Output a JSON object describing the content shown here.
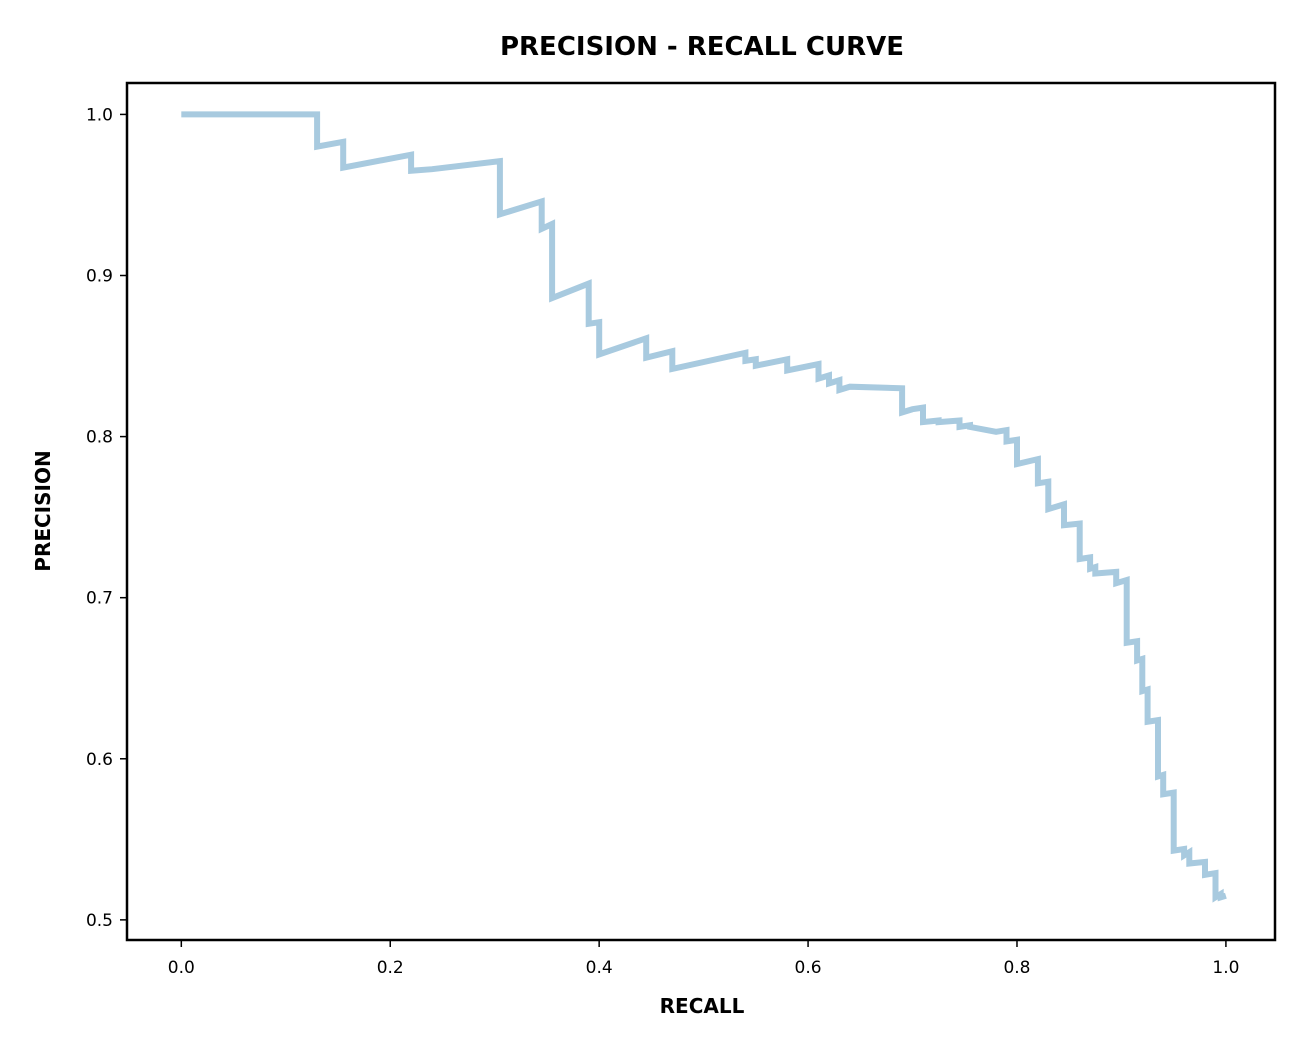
{
  "chart_data": {
    "type": "line",
    "title": "PRECISION - RECALL CURVE",
    "xlabel": "RECALL",
    "ylabel": "PRECISION",
    "xlim": [
      -0.052,
      1.047
    ],
    "ylim": [
      0.4875,
      1.0195
    ],
    "xticks": [
      0.0,
      0.2,
      0.4,
      0.6,
      0.8,
      1.0
    ],
    "xtick_labels": [
      "0.0",
      "0.2",
      "0.4",
      "0.6",
      "0.8",
      "1.0"
    ],
    "yticks": [
      0.5,
      0.6,
      0.7,
      0.8,
      0.9,
      1.0
    ],
    "ytick_labels": [
      "0.5",
      "0.6",
      "0.7",
      "0.8",
      "0.9",
      "1.0"
    ],
    "grid": false,
    "line_color": "#a8cadf",
    "series": [
      {
        "step": "post",
        "x": [
          0.0,
          0.13,
          0.13,
          0.155,
          0.155,
          0.22,
          0.22,
          0.24,
          0.24,
          0.305,
          0.305,
          0.345,
          0.345,
          0.355,
          0.355,
          0.39,
          0.39,
          0.4,
          0.4,
          0.445,
          0.445,
          0.47,
          0.47,
          0.54,
          0.54,
          0.55,
          0.55,
          0.58,
          0.58,
          0.61,
          0.61,
          0.62,
          0.62,
          0.63,
          0.63,
          0.64,
          0.64,
          0.69,
          0.69,
          0.7,
          0.7,
          0.71,
          0.71,
          0.725,
          0.725,
          0.745,
          0.745,
          0.755,
          0.755,
          0.78,
          0.78,
          0.79,
          0.79,
          0.8,
          0.8,
          0.82,
          0.82,
          0.83,
          0.83,
          0.845,
          0.845,
          0.86,
          0.86,
          0.87,
          0.87,
          0.875,
          0.875,
          0.895,
          0.895,
          0.905,
          0.905,
          0.915,
          0.915,
          0.92,
          0.92,
          0.925,
          0.925,
          0.935,
          0.935,
          0.94,
          0.94,
          0.95,
          0.95,
          0.96,
          0.96,
          0.965,
          0.965,
          0.98,
          0.98,
          0.99,
          0.99,
          0.995,
          0.995,
          1.0
        ],
        "y": [
          1.0,
          1.0,
          0.98,
          0.983,
          0.967,
          0.975,
          0.965,
          0.966,
          0.966,
          0.971,
          0.938,
          0.946,
          0.929,
          0.932,
          0.886,
          0.895,
          0.87,
          0.871,
          0.851,
          0.861,
          0.849,
          0.853,
          0.842,
          0.852,
          0.847,
          0.848,
          0.844,
          0.848,
          0.841,
          0.845,
          0.836,
          0.838,
          0.833,
          0.835,
          0.829,
          0.831,
          0.831,
          0.83,
          0.815,
          0.817,
          0.817,
          0.818,
          0.809,
          0.81,
          0.809,
          0.81,
          0.806,
          0.807,
          0.806,
          0.803,
          0.803,
          0.804,
          0.797,
          0.798,
          0.783,
          0.786,
          0.771,
          0.772,
          0.755,
          0.758,
          0.745,
          0.746,
          0.724,
          0.725,
          0.718,
          0.719,
          0.715,
          0.716,
          0.709,
          0.711,
          0.672,
          0.673,
          0.661,
          0.662,
          0.642,
          0.643,
          0.623,
          0.624,
          0.589,
          0.59,
          0.578,
          0.579,
          0.543,
          0.544,
          0.54,
          0.542,
          0.535,
          0.536,
          0.528,
          0.529,
          0.514,
          0.516,
          0.514,
          0.515
        ]
      }
    ]
  }
}
